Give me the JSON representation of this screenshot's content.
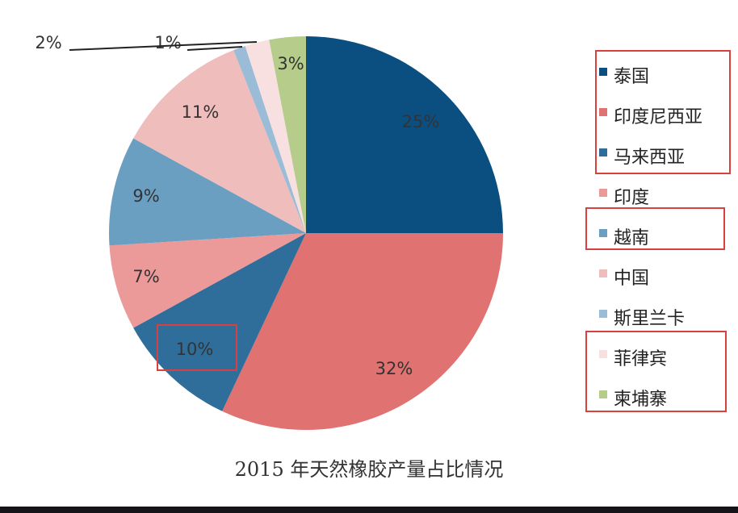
{
  "chart_data": {
    "type": "pie",
    "title": "2015 年天然橡胶产量占比情况",
    "start": "12 o'clock, clockwise",
    "legend_position": "right",
    "categories": [
      "泰国",
      "印度尼西亚",
      "马来西亚",
      "印度",
      "越南",
      "中国",
      "斯里兰卡",
      "菲律宾",
      "柬埔寨"
    ],
    "values": [
      25,
      32,
      10,
      7,
      9,
      11,
      1,
      2,
      3
    ],
    "labels": [
      "25%",
      "32%",
      "10%",
      "7%",
      "9%",
      "11%",
      "1%",
      "2%",
      "3%"
    ],
    "colors": [
      "#0b4f80",
      "#e07271",
      "#2f6e9b",
      "#eb9a99",
      "#6b9fc1",
      "#f0bdbd",
      "#9bbcd6",
      "#f8e0e1",
      "#b5cc8b"
    ]
  },
  "annotations": {
    "highlight_color": "#d9413f"
  }
}
